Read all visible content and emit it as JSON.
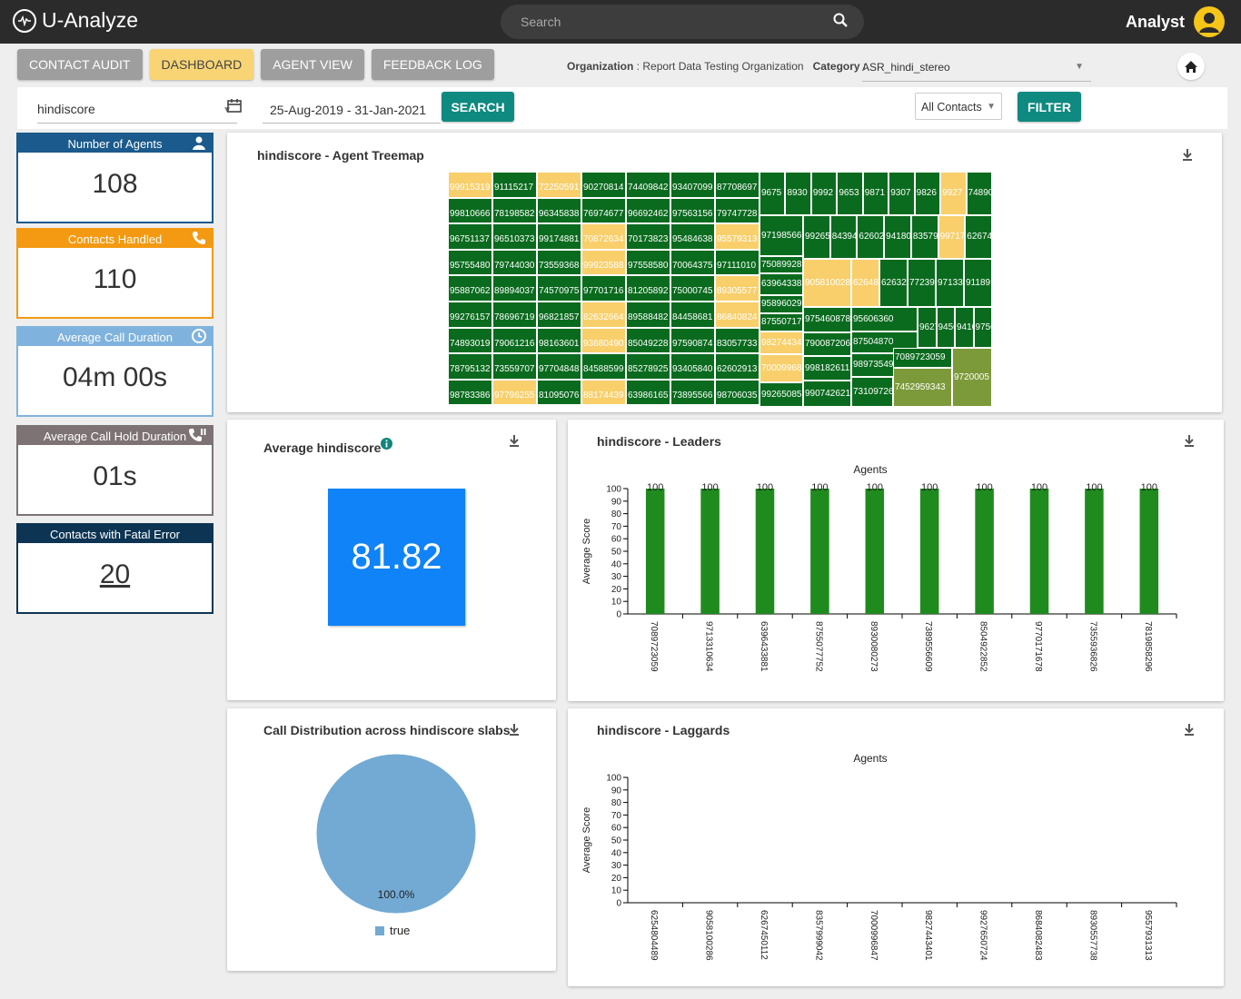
{
  "app": {
    "name": "U-Analyze",
    "user": "Analyst"
  },
  "search": {
    "placeholder": "Search"
  },
  "tabs": [
    "CONTACT AUDIT",
    "DASHBOARD",
    "AGENT VIEW",
    "FEEDBACK LOG"
  ],
  "org": {
    "label": "Organization",
    "value": "Report Data Testing Organization",
    "cat_label": "Category",
    "cat_value": "ASR_hindi_stereo"
  },
  "filters": {
    "parameter": "hindiscore",
    "date_range": "25-Aug-2019 - 31-Jan-2021",
    "search_btn": "SEARCH",
    "contacts": "All Contacts",
    "filter_btn": "FILTER"
  },
  "kpis": [
    {
      "label": "Number of Agents",
      "value": "108",
      "color": "#1a5a8c",
      "icon": "user-icon"
    },
    {
      "label": "Contacts Handled",
      "value": "110",
      "color": "#f39a12",
      "icon": "phone-icon"
    },
    {
      "label": "Average Call Duration",
      "value": "04m 00s",
      "color": "#7fb3dd",
      "icon": "clock-icon"
    },
    {
      "label": "Average Call Hold Duration",
      "value": "01s",
      "color": "#7d7374",
      "icon": "phone-hold-icon"
    },
    {
      "label": "Contacts with Fatal Error",
      "value": "20",
      "color": "#0d3553",
      "icon": "none"
    }
  ],
  "treemap": {
    "title": "hindiscore - Agent Treemap",
    "columns": [
      [
        [
          "99915319",
          "y"
        ],
        [
          "99810666",
          "g"
        ],
        [
          "96751137",
          "g"
        ],
        [
          "95755480",
          "g"
        ],
        [
          "95887062",
          "g"
        ],
        [
          "99276157",
          "g"
        ],
        [
          "74893019",
          "g"
        ],
        [
          "78795132",
          "g"
        ],
        [
          "98783386",
          "g"
        ]
      ],
      [
        [
          "91115217",
          "g"
        ],
        [
          "78198582",
          "g"
        ],
        [
          "96510373",
          "g"
        ],
        [
          "79744030",
          "g"
        ],
        [
          "89894037",
          "g"
        ],
        [
          "78696719",
          "g"
        ],
        [
          "79061216",
          "g"
        ],
        [
          "73559707",
          "g"
        ],
        [
          "97796255",
          "y"
        ]
      ],
      [
        [
          "72250591",
          "y"
        ],
        [
          "96345838",
          "g"
        ],
        [
          "99174881",
          "g"
        ],
        [
          "73559368",
          "g"
        ],
        [
          "74570975",
          "g"
        ],
        [
          "96821857",
          "g"
        ],
        [
          "98163601",
          "g"
        ],
        [
          "97704848",
          "g"
        ],
        [
          "81095076",
          "g"
        ]
      ],
      [
        [
          "90270814",
          "g"
        ],
        [
          "76974677",
          "g"
        ],
        [
          "70872634",
          "y"
        ],
        [
          "99923588",
          "y"
        ],
        [
          "97701716",
          "g"
        ],
        [
          "82632664",
          "y"
        ],
        [
          "93680490",
          "y"
        ],
        [
          "84588599",
          "g"
        ],
        [
          "88174439",
          "y"
        ]
      ],
      [
        [
          "74409842",
          "g"
        ],
        [
          "96692462",
          "g"
        ],
        [
          "70173823",
          "g"
        ],
        [
          "97558580",
          "g"
        ],
        [
          "81205892",
          "g"
        ],
        [
          "89588482",
          "g"
        ],
        [
          "85049228",
          "g"
        ],
        [
          "85278925",
          "g"
        ],
        [
          "63986165",
          "g"
        ]
      ],
      [
        [
          "93407099",
          "g"
        ],
        [
          "97563156",
          "g"
        ],
        [
          "95484638",
          "g"
        ],
        [
          "70064375",
          "g"
        ],
        [
          "75000745",
          "g"
        ],
        [
          "84458681",
          "g"
        ],
        [
          "97590874",
          "g"
        ],
        [
          "93405840",
          "g"
        ],
        [
          "73895566",
          "g"
        ]
      ],
      [
        [
          "87708697",
          "g"
        ],
        [
          "79747728",
          "g"
        ],
        [
          "95579313",
          "y"
        ],
        [
          "97111010",
          "g"
        ],
        [
          "89305577",
          "y"
        ],
        [
          "86840824",
          "y"
        ],
        [
          "83057733",
          "g"
        ],
        [
          "62602913",
          "g"
        ],
        [
          "98706035",
          "g"
        ]
      ]
    ],
    "right": [
      {
        "row": [
          "9675",
          "8930",
          "9992",
          "9653",
          "9871",
          "9307",
          "9826",
          "9927",
          "74890"
        ],
        "kinds": "gggggggyg"
      },
      {
        "row": [
          "97198566"
        ],
        "kinds": "g"
      },
      {
        "row": [
          "99265",
          "84394",
          "62602",
          "94180",
          "83579",
          "99717",
          "62674"
        ],
        "kinds": "gggggyg"
      },
      {
        "row": [
          "75089928"
        ],
        "kinds": "g"
      },
      {
        "row": [
          "639643388"
        ],
        "kinds": "g"
      },
      {
        "row": [
          "95896029"
        ],
        "kinds": "g"
      },
      {
        "row": [
          "905810028"
        ],
        "kinds": "y"
      },
      {
        "row": [
          "62648",
          "62632",
          "77239",
          "97133",
          "91189"
        ],
        "kinds": "yggggg"
      },
      {
        "row": [
          "87550717"
        ],
        "kinds": "g"
      },
      {
        "row": [
          "975460878"
        ],
        "kinds": "g"
      },
      {
        "row": [
          "95606360"
        ],
        "kinds": "g"
      },
      {
        "row": [
          "98274434"
        ],
        "kinds": "y"
      },
      {
        "row": [
          "790087206"
        ],
        "kinds": "g"
      },
      {
        "row": [
          "87504870"
        ],
        "kinds": "g"
      },
      {
        "row": [
          "9627",
          "9456",
          "9416",
          "9756"
        ],
        "kinds": "gggg"
      },
      {
        "row": [
          "70009968"
        ],
        "kinds": "y"
      },
      {
        "row": [
          "998182611"
        ],
        "kinds": "g"
      },
      {
        "row": [
          "98973549"
        ],
        "kinds": "g"
      },
      {
        "row": [
          "7089723059"
        ],
        "kinds": "g"
      },
      {
        "row": [
          "99265085"
        ],
        "kinds": "g"
      },
      {
        "row": [
          "990742621"
        ],
        "kinds": "g"
      },
      {
        "row": [
          "73109726"
        ],
        "kinds": "g"
      },
      {
        "row": [
          "7452959343"
        ],
        "kinds": "o"
      },
      {
        "row": [
          "9720005"
        ],
        "kinds": "o"
      }
    ]
  },
  "avg_card": {
    "title": "Average hindiscore",
    "value": "81.82"
  },
  "dist_card": {
    "title": "Call Distribution across hindiscore slabs",
    "slice_label": "100.0%",
    "legend": "true"
  },
  "chart_data": [
    {
      "type": "bar",
      "title": "hindiscore - Leaders",
      "subtitle": "Agents",
      "xlabel": "Agents",
      "ylabel": "Average Score",
      "ylim": [
        0,
        100
      ],
      "yticks": [
        0,
        10,
        20,
        30,
        40,
        50,
        60,
        70,
        80,
        90,
        100
      ],
      "categories": [
        "7089723059",
        "9713310634",
        "6396433881",
        "8755077752",
        "8930080273",
        "7389556609",
        "8504922852",
        "9770171678",
        "7355936826",
        "7819858296"
      ],
      "values": [
        100,
        100,
        100,
        100,
        100,
        100,
        100,
        100,
        100,
        100
      ],
      "data_labels": [
        "100",
        "100",
        "100",
        "100",
        "100",
        "100",
        "100",
        "100",
        "100",
        "100"
      ],
      "color": "#1f8b1f"
    },
    {
      "type": "bar",
      "title": "hindiscore - Laggards",
      "subtitle": "Agents",
      "xlabel": "Agents",
      "ylabel": "Average Score",
      "ylim": [
        0,
        100
      ],
      "yticks": [
        0,
        10,
        20,
        30,
        40,
        50,
        60,
        70,
        80,
        90,
        100
      ],
      "categories": [
        "6254804489",
        "9058100286",
        "6267450112",
        "8357999042",
        "7000996847",
        "9827443401",
        "9927650724",
        "8684082483",
        "8930557738",
        "9557931313"
      ],
      "values": [
        0,
        0,
        0,
        0,
        0,
        0,
        0,
        0,
        0,
        0
      ],
      "color": "#1f8b1f"
    },
    {
      "type": "pie",
      "title": "Call Distribution across hindiscore slabs",
      "categories": [
        "true"
      ],
      "values": [
        100.0
      ],
      "color": "#72aad4"
    }
  ]
}
